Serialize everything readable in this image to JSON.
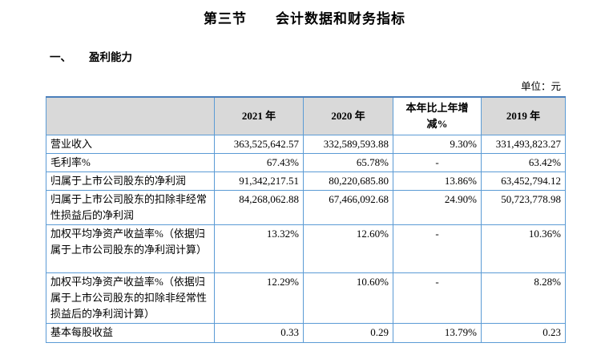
{
  "page": {
    "title": "第三节　　会计数据和财务指标",
    "section_numeral": "一、",
    "section_title": "盈利能力",
    "unit_note": "单位：元"
  },
  "colors": {
    "table_border": "#5b9bd5",
    "table_border_top": "#4a7ebb",
    "header_fill": "#d9d9d9",
    "header_change_fill": "#ffffff",
    "text": "#000000"
  },
  "table": {
    "columns": [
      "",
      "2021 年",
      "2020 年",
      "本年比上年增减%",
      "2019 年"
    ],
    "rows": [
      {
        "label": "营业收入",
        "y2021": "363,525,642.57",
        "y2020": "332,589,593.88",
        "change": "9.30%",
        "y2019": "331,493,823.27"
      },
      {
        "label": "毛利率%",
        "y2021": "67.43%",
        "y2020": "65.78%",
        "change": "-",
        "y2019": "63.42%"
      },
      {
        "label": "归属于上市公司股东的净利润",
        "y2021": "91,342,217.51",
        "y2020": "80,220,685.80",
        "change": "13.86%",
        "y2019": "63,452,794.12"
      },
      {
        "label": "归属于上市公司股东的扣除非经常性损益后的净利润",
        "y2021": "84,268,062.88",
        "y2020": "67,466,092.68",
        "change": "24.90%",
        "y2019": "50,723,778.98"
      },
      {
        "label": "加权平均净资产收益率%（依据归属于上市公司股东的净利润计算）",
        "y2021": "13.32%",
        "y2020": "12.60%",
        "change": "-",
        "y2019": "10.36%"
      },
      {
        "label": "加权平均净资产收益率%（依据归属于上市公司股东的扣除非经常性损益后的净利润计算）",
        "y2021": "12.29%",
        "y2020": "10.60%",
        "change": "-",
        "y2019": "8.28%"
      },
      {
        "label": "基本每股收益",
        "y2021": "0.33",
        "y2020": "0.29",
        "change": "13.79%",
        "y2019": "0.23"
      }
    ]
  }
}
